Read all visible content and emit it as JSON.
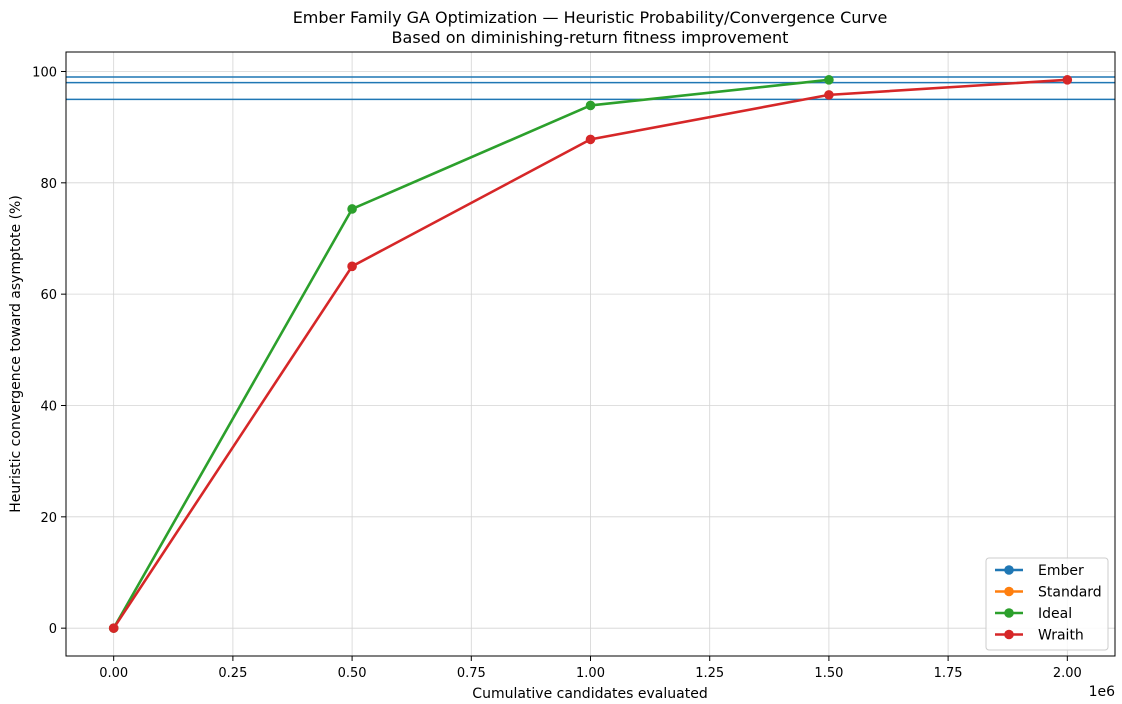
{
  "chart_data": {
    "type": "line",
    "title": "Ember Family GA Optimization — Heuristic Probability/Convergence Curve",
    "subtitle": "Based on diminishing-return fitness improvement",
    "xlabel": "Cumulative candidates evaluated",
    "ylabel": "Heuristic convergence toward asymptote (%)",
    "x_offset_label": "1e6",
    "xlim": [
      -100000,
      2100000
    ],
    "ylim": [
      -5,
      103.5
    ],
    "x_ticks": [
      0,
      250000,
      500000,
      750000,
      1000000,
      1250000,
      1500000,
      1750000,
      2000000
    ],
    "x_tick_labels": [
      "0.00",
      "0.25",
      "0.50",
      "0.75",
      "1.00",
      "1.25",
      "1.50",
      "1.75",
      "2.00"
    ],
    "y_ticks": [
      0,
      20,
      40,
      60,
      80,
      100
    ],
    "y_tick_labels": [
      "0",
      "20",
      "40",
      "60",
      "80",
      "100"
    ],
    "grid": true,
    "legend_position": "bottom-right",
    "reference_lines": [
      {
        "y": 95,
        "color": "#1f77b4"
      },
      {
        "y": 98,
        "color": "#1f77b4"
      },
      {
        "y": 99,
        "color": "#1f77b4"
      }
    ],
    "series": [
      {
        "name": "Ember",
        "color": "#1f77b4",
        "x": [],
        "y": []
      },
      {
        "name": "Standard",
        "color": "#ff7f0e",
        "x": [],
        "y": []
      },
      {
        "name": "Ideal",
        "color": "#2ca02c",
        "x": [
          0,
          500000,
          1000000,
          1500000
        ],
        "y": [
          0,
          75.3,
          93.9,
          98.5
        ]
      },
      {
        "name": "Wraith",
        "color": "#d62728",
        "x": [
          0,
          500000,
          1000000,
          1500000,
          2000000
        ],
        "y": [
          0,
          65.0,
          87.8,
          95.8,
          98.5
        ]
      }
    ]
  }
}
